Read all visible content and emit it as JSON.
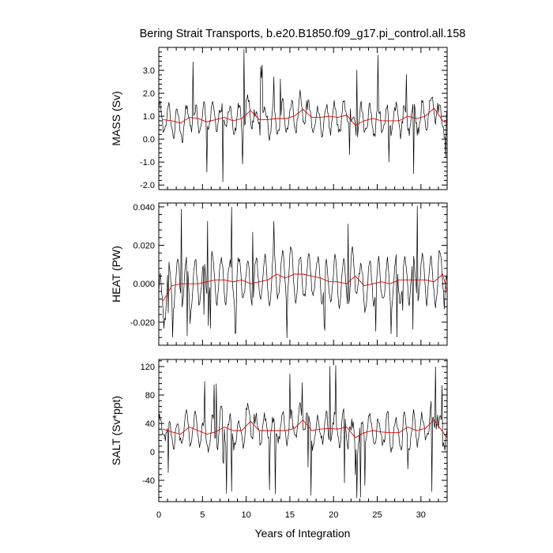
{
  "figure": {
    "title": "Bering Strait Transports, b.e20.B1850.f09_g17.pi_control.all.158",
    "xlabel": "Years of Integration"
  },
  "colors": {
    "raw_series": "#000000",
    "annual_mean_series": "#e00000"
  },
  "chart_data": [
    {
      "type": "line",
      "ylabel": "MASS (Sv)",
      "xlim": [
        0,
        33
      ],
      "ylim": [
        -2.2,
        4.0
      ],
      "xticks": [
        0,
        5,
        10,
        15,
        20,
        25,
        30
      ],
      "xtick_labels": [
        "0",
        "5",
        "10",
        "15",
        "20",
        "25",
        "30"
      ],
      "yticks": [
        -2.0,
        -1.0,
        0.0,
        1.0,
        2.0,
        3.0
      ],
      "ytick_labels": [
        "-2.0",
        "-1.0",
        "0.0",
        "1.0",
        "2.0",
        "3.0"
      ],
      "yminor_step": 0.2,
      "xminor_step": 1,
      "seasonal": {
        "amp": 0.6,
        "noise": 0.5,
        "spike_low": -2.1,
        "spike_high": 4.0
      },
      "annual_mean": [
        0.85,
        0.8,
        0.7,
        0.95,
        0.9,
        0.75,
        0.85,
        0.95,
        0.8,
        0.9,
        1.25,
        0.85,
        0.85,
        0.9,
        0.9,
        1.0,
        1.3,
        0.95,
        0.95,
        1.0,
        0.95,
        1.05,
        0.6,
        0.8,
        0.9,
        0.8,
        0.8,
        0.8,
        1.0,
        0.9,
        1.0,
        1.35,
        0.8,
        0.7
      ]
    },
    {
      "type": "line",
      "ylabel": "HEAT (PW)",
      "xlim": [
        0,
        33
      ],
      "ylim": [
        -0.032,
        0.042
      ],
      "xticks": [
        0,
        5,
        10,
        15,
        20,
        25,
        30
      ],
      "xtick_labels": [
        "0",
        "5",
        "10",
        "15",
        "20",
        "25",
        "30"
      ],
      "yticks": [
        -0.02,
        0.0,
        0.02,
        0.04
      ],
      "ytick_labels": [
        "-0.020",
        "0.000",
        "0.020",
        "0.040"
      ],
      "yminor_step": 0.004,
      "xminor_step": 1,
      "seasonal": {
        "amp": 0.012,
        "noise": 0.005,
        "spike_low": -0.032,
        "spike_high": 0.042
      },
      "annual_mean": [
        -0.009,
        -0.001,
        0.0,
        0.0,
        0.0,
        0.001,
        0.002,
        0.002,
        0.001,
        0.002,
        0.0,
        0.001,
        0.002,
        0.005,
        0.003,
        0.005,
        0.005,
        0.004,
        0.003,
        0.001,
        0.001,
        0.0,
        0.004,
        -0.001,
        0.0,
        0.001,
        0.0,
        0.002,
        0.002,
        0.002,
        0.002,
        0.001,
        0.005,
        -0.004
      ]
    },
    {
      "type": "line",
      "ylabel": "SALT (Sv*ppt)",
      "xlim": [
        0,
        33
      ],
      "ylim": [
        -70,
        130
      ],
      "xticks": [
        0,
        5,
        10,
        15,
        20,
        25,
        30
      ],
      "xtick_labels": [
        "0",
        "5",
        "10",
        "15",
        "20",
        "25",
        "30"
      ],
      "yticks": [
        -40,
        0,
        40,
        80,
        120
      ],
      "ytick_labels": [
        "-40",
        "0",
        "40",
        "80",
        "120"
      ],
      "yminor_step": 8,
      "xminor_step": 1,
      "seasonal": {
        "amp": 20,
        "noise": 17,
        "spike_low": -70,
        "spike_high": 128
      },
      "annual_mean": [
        32,
        28,
        25,
        35,
        30,
        25,
        28,
        35,
        30,
        30,
        43,
        30,
        30,
        30,
        30,
        33,
        45,
        30,
        32,
        33,
        32,
        35,
        20,
        27,
        30,
        28,
        27,
        27,
        35,
        30,
        33,
        45,
        28,
        20
      ]
    }
  ]
}
